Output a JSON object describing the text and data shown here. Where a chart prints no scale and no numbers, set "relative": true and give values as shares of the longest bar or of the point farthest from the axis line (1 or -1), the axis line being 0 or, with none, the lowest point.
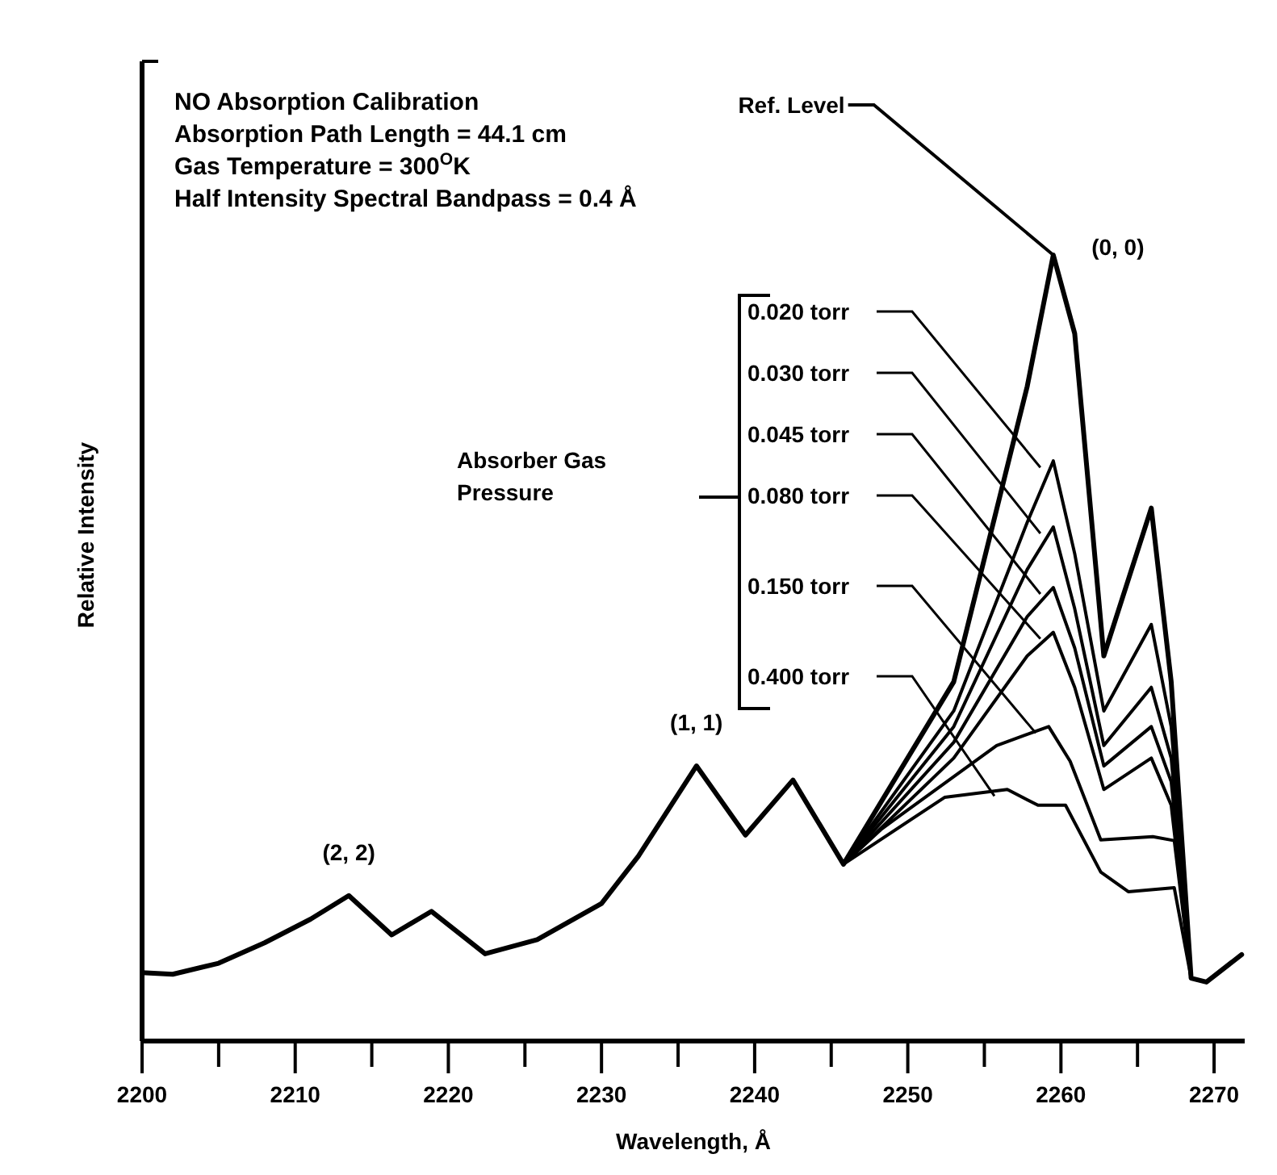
{
  "chart_data": {
    "type": "line",
    "relative": true,
    "xlabel": "Wavelength, Å",
    "ylabel": "Relative Intensity",
    "legend_title": "Absorber Gas Pressure",
    "legend": "top",
    "xlim": [
      2200,
      2272
    ],
    "xticks": [
      2200,
      {
        "value": 2205,
        "label": null
      },
      2210,
      {
        "value": 2215,
        "label": null
      },
      2220,
      {
        "value": 2225,
        "label": null
      },
      2230,
      {
        "value": 2235,
        "label": null
      },
      2240,
      {
        "value": 2245,
        "label": null
      },
      2250,
      {
        "value": 2255,
        "label": null
      },
      2260,
      {
        "value": 2265,
        "label": null
      },
      2270
    ],
    "annotations": [
      "NO Absorption Calibration",
      "Absorption Path Length = 44.1 cm",
      "Gas Temperature = 300$^{O}$K",
      "Half Intensity Spectral Bandpass = 0.4 Å",
      {
        "text": "(2, 2)",
        "x": 2213.5,
        "y": 0.185
      },
      {
        "text": "(1, 1)",
        "x": 2236.2,
        "y": 0.35
      },
      {
        "text": "(0, 0)",
        "x": 2259.5,
        "y": 1.0
      }
    ],
    "series": [
      {
        "name": "Ref. Level",
        "color": "#000000",
        "x": [
          2200,
          2202,
          2205,
          2208,
          2211,
          2213.5,
          2216.3,
          2218.9,
          2222.4,
          2225.8,
          2230,
          2232.4,
          2236.2,
          2239.4,
          2242.5,
          2245.8,
          2253,
          2257.8,
          2259.5,
          2260.9,
          2262.8,
          2265.9,
          2267.2,
          2268.5,
          2269.5,
          2271.8
        ],
        "values": [
          0.087,
          0.085,
          0.099,
          0.125,
          0.155,
          0.185,
          0.135,
          0.165,
          0.111,
          0.129,
          0.175,
          0.235,
          0.35,
          0.262,
          0.332,
          0.225,
          0.457,
          0.833,
          1.0,
          0.9,
          0.49,
          0.678,
          0.457,
          0.08,
          0.075,
          0.11
        ]
      },
      {
        "name": "0.020 torr",
        "color": "#000000",
        "x": [
          2200,
          2202,
          2205,
          2208,
          2211,
          2213.5,
          2216.3,
          2218.9,
          2222.4,
          2225.8,
          2230,
          2232.4,
          2236.2,
          2239.4,
          2242.5,
          2245.8,
          2253,
          2257.8,
          2259.5,
          2260.9,
          2262.8,
          2265.9,
          2267.2,
          2268.5,
          2269.5,
          2271.8
        ],
        "values": [
          0.087,
          0.085,
          0.099,
          0.125,
          0.155,
          0.185,
          0.135,
          0.165,
          0.111,
          0.129,
          0.175,
          0.235,
          0.35,
          0.262,
          0.332,
          0.225,
          0.42,
          0.66,
          0.738,
          0.62,
          0.42,
          0.53,
          0.4,
          0.08,
          0.075,
          0.11
        ]
      },
      {
        "name": "0.030 torr",
        "color": "#000000",
        "x": [
          2200,
          2202,
          2205,
          2208,
          2211,
          2213.5,
          2216.3,
          2218.9,
          2222.4,
          2225.8,
          2230,
          2232.4,
          2236.2,
          2239.4,
          2242.5,
          2245.8,
          2253,
          2257.8,
          2259.5,
          2260.9,
          2262.8,
          2265.9,
          2267.2,
          2268.5,
          2269.5,
          2271.8
        ],
        "values": [
          0.087,
          0.085,
          0.099,
          0.125,
          0.155,
          0.185,
          0.135,
          0.165,
          0.111,
          0.129,
          0.175,
          0.235,
          0.35,
          0.262,
          0.332,
          0.225,
          0.4,
          0.6,
          0.654,
          0.55,
          0.376,
          0.45,
          0.36,
          0.08,
          0.075,
          0.11
        ]
      },
      {
        "name": "0.045 torr",
        "color": "#000000",
        "x": [
          2200,
          2202,
          2205,
          2208,
          2211,
          2213.5,
          2216.3,
          2218.9,
          2222.4,
          2225.8,
          2230,
          2232.4,
          2236.2,
          2239.4,
          2242.5,
          2245.8,
          2253,
          2257.8,
          2259.5,
          2260.9,
          2262.8,
          2265.9,
          2267.2,
          2268.5,
          2269.5,
          2271.8
        ],
        "values": [
          0.087,
          0.085,
          0.099,
          0.125,
          0.155,
          0.185,
          0.135,
          0.165,
          0.111,
          0.129,
          0.175,
          0.235,
          0.35,
          0.262,
          0.332,
          0.225,
          0.38,
          0.54,
          0.577,
          0.5,
          0.35,
          0.4,
          0.33,
          0.08,
          0.075,
          0.11
        ]
      },
      {
        "name": "0.080 torr",
        "color": "#000000",
        "x": [
          2200,
          2202,
          2205,
          2208,
          2211,
          2213.5,
          2216.3,
          2218.9,
          2222.4,
          2225.8,
          2230,
          2232.4,
          2236.2,
          2239.4,
          2242.5,
          2245.8,
          2253,
          2257.8,
          2259.5,
          2260.9,
          2262.8,
          2265.9,
          2267.2,
          2268.5,
          2269.5,
          2271.8
        ],
        "values": [
          0.087,
          0.085,
          0.099,
          0.125,
          0.155,
          0.185,
          0.135,
          0.165,
          0.111,
          0.129,
          0.175,
          0.235,
          0.35,
          0.262,
          0.332,
          0.225,
          0.36,
          0.49,
          0.52,
          0.45,
          0.32,
          0.36,
          0.3,
          0.08,
          0.075,
          0.11
        ]
      },
      {
        "name": "0.150 torr",
        "color": "#000000",
        "x": [
          2200,
          2202,
          2205,
          2208,
          2211,
          2213.5,
          2216.3,
          2218.9,
          2222.4,
          2225.8,
          2230,
          2232.4,
          2236.2,
          2239.4,
          2242.5,
          2245.8,
          2248.3,
          2255.8,
          2259.2,
          2260.6,
          2262.6,
          2266,
          2267.4,
          2268.5,
          2269.5,
          2271.8
        ],
        "values": [
          0.087,
          0.085,
          0.099,
          0.125,
          0.155,
          0.185,
          0.135,
          0.165,
          0.111,
          0.129,
          0.175,
          0.235,
          0.35,
          0.262,
          0.332,
          0.225,
          0.27,
          0.376,
          0.4,
          0.356,
          0.256,
          0.26,
          0.255,
          0.08,
          0.075,
          0.11
        ]
      },
      {
        "name": "0.400 torr",
        "color": "#000000",
        "x": [
          2200,
          2202,
          2205,
          2208,
          2211,
          2213.5,
          2216.3,
          2218.9,
          2222.4,
          2225.8,
          2230,
          2232.4,
          2236.2,
          2239.4,
          2242.5,
          2245.8,
          2252.4,
          2256.5,
          2258.5,
          2260.3,
          2262.6,
          2264.4,
          2267.4,
          2268.5,
          2269.5,
          2271.8
        ],
        "values": [
          0.087,
          0.085,
          0.099,
          0.125,
          0.155,
          0.185,
          0.135,
          0.165,
          0.111,
          0.129,
          0.175,
          0.235,
          0.35,
          0.262,
          0.332,
          0.225,
          0.31,
          0.32,
          0.3,
          0.3,
          0.215,
          0.19,
          0.195,
          0.08,
          0.075,
          0.11
        ]
      }
    ]
  }
}
